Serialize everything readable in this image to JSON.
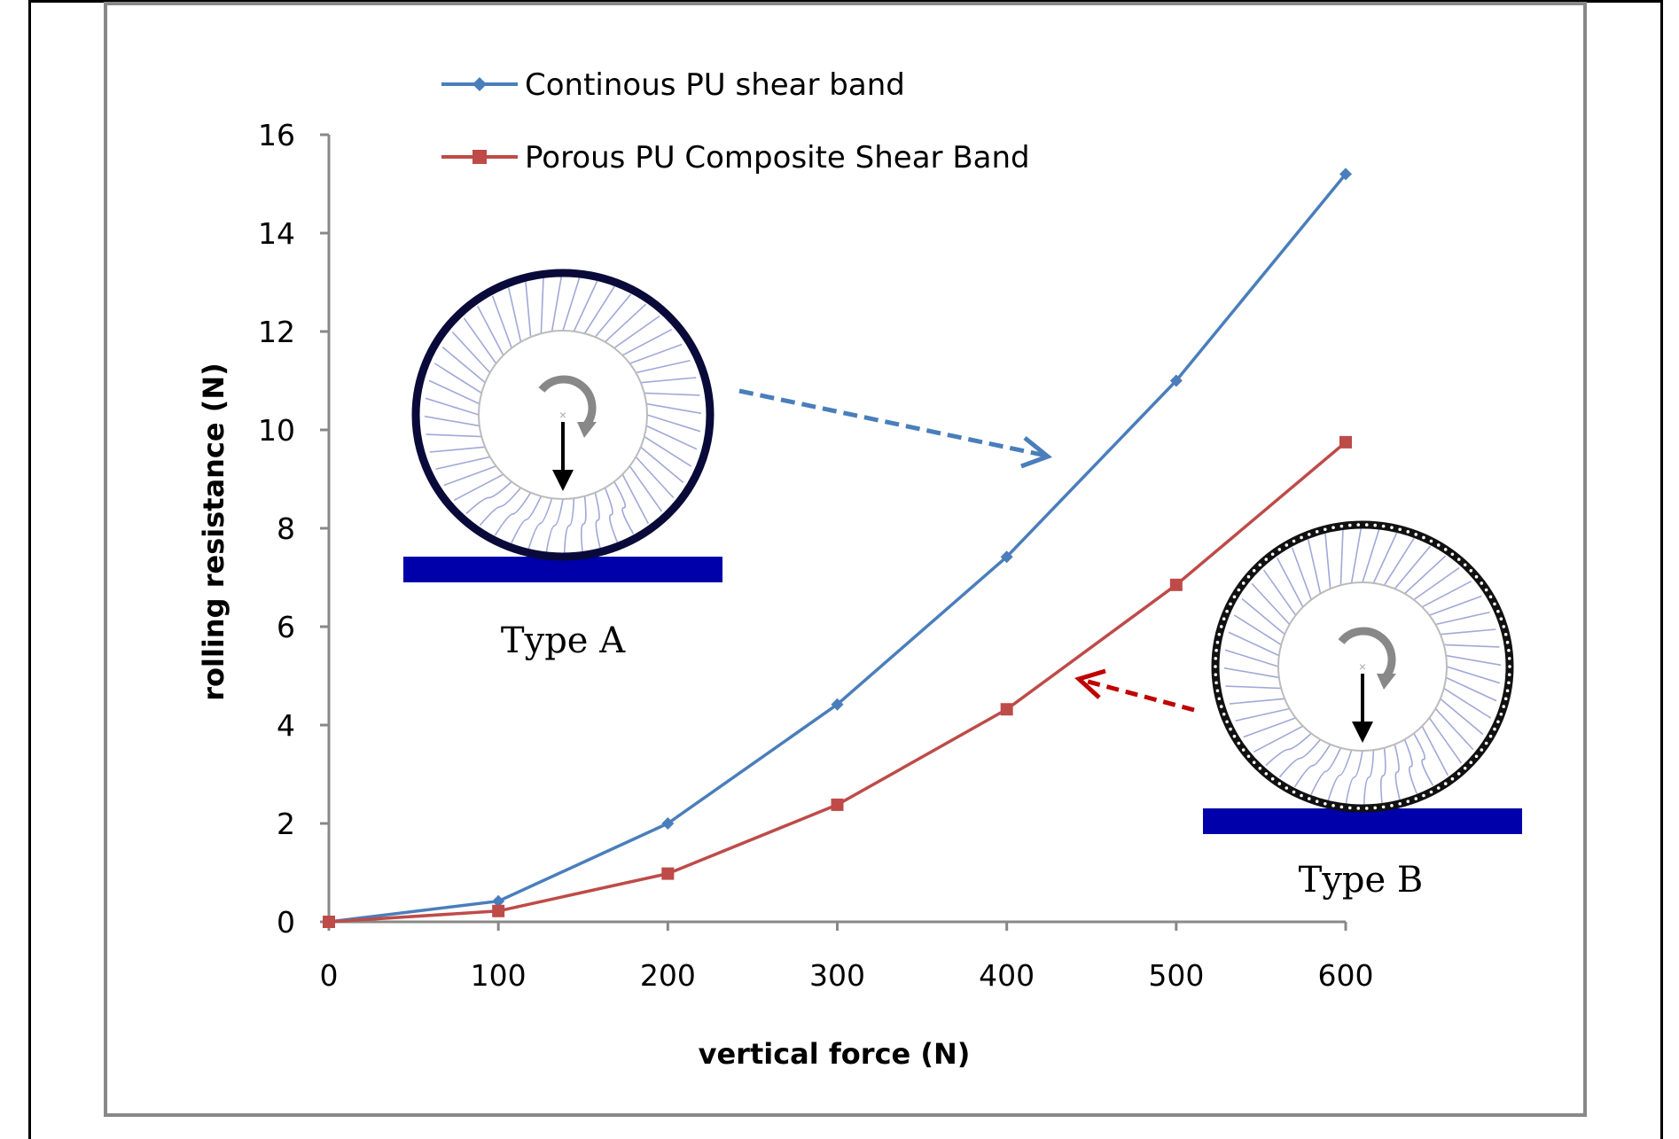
{
  "chart_data": {
    "type": "line",
    "title": "",
    "xlabel": "vertical force (N)",
    "ylabel": "rolling resistance (N)",
    "x": [
      0,
      100,
      200,
      300,
      400,
      500,
      600
    ],
    "xlim": [
      0,
      600
    ],
    "ylim": [
      0,
      16
    ],
    "xticks": [
      "0",
      "100",
      "200",
      "300",
      "400",
      "500",
      "600"
    ],
    "yticks": [
      "0",
      "2",
      "4",
      "6",
      "8",
      "10",
      "12",
      "14",
      "16"
    ],
    "grid": false,
    "legend_position": "top-left",
    "series": [
      {
        "name": "Continous PU shear band",
        "color": "#4A7EBB",
        "marker": "diamond",
        "values": [
          0,
          0.42,
          2.0,
          4.42,
          7.42,
          11.0,
          15.2
        ]
      },
      {
        "name": "Porous PU Composite Shear Band",
        "color": "#BE4B48",
        "marker": "square",
        "values": [
          0,
          0.22,
          0.98,
          2.38,
          4.32,
          6.85,
          9.75
        ]
      }
    ],
    "annotations": [
      {
        "label": "Type A",
        "description": "continuous shear band tire illustration",
        "arrow_to_series": "Continous PU shear band",
        "arrow_color": "#4A7EBB"
      },
      {
        "label": "Type B",
        "description": "porous composite shear band tire illustration",
        "arrow_to_series": "Porous PU Composite Shear Band",
        "arrow_color": "#C00000"
      }
    ]
  },
  "legend": {
    "items": [
      {
        "label": "Continous PU shear band",
        "color": "#4A7EBB",
        "marker": "diamond"
      },
      {
        "label": "Porous PU Composite Shear Band",
        "color": "#BE4B48",
        "marker": "square"
      }
    ]
  },
  "axes": {
    "x_title": "vertical force (N)",
    "y_title": "rolling resistance (N)",
    "axis_color": "#888888"
  },
  "illustrations": {
    "type_a": {
      "label": "Type A",
      "rim_color": "#0A0A3A",
      "ground_color": "#0000AA",
      "spoke_color": "#A0A8D8"
    },
    "type_b": {
      "label": "Type B",
      "rim_color": "#111111",
      "ground_color": "#0000AA",
      "spoke_color": "#A0A8D8"
    }
  }
}
